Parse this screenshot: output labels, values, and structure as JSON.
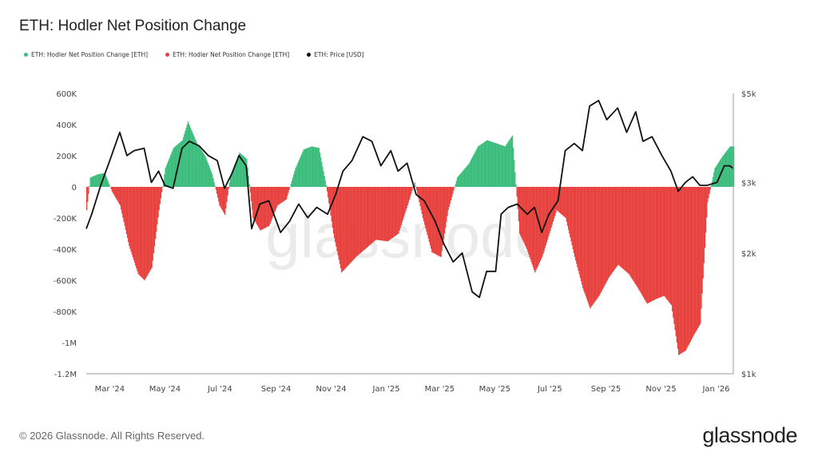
{
  "title": "ETH: Hodler Net Position Change",
  "legend": [
    {
      "label": "ETH: Hodler Net Position Change [ETH]",
      "color": "#3dbd7d"
    },
    {
      "label": "ETH: Hodler Net Position Change [ETH]",
      "color": "#e8423f"
    },
    {
      "label": "ETH: Price [USD]",
      "color": "#111111"
    }
  ],
  "watermark": "glassnode",
  "footer": {
    "copyright": "© 2026 Glassnode. All Rights Reserved.",
    "brand": "glassnode"
  },
  "chart_data": {
    "type": "bar",
    "title": "ETH: Hodler Net Position Change",
    "x_range": [
      "2024-02-04",
      "2026-01-20"
    ],
    "x_ticks": [
      "Mar '24",
      "May '24",
      "Jul '24",
      "Sep '24",
      "Nov '24",
      "Jan '25",
      "Mar '25",
      "May '25",
      "Jul '25",
      "Sep '25",
      "Nov '25",
      "Jan '26"
    ],
    "y_left": {
      "ticks": [
        600000,
        400000,
        200000,
        0,
        -200000,
        -400000,
        -600000,
        -800000,
        -1000000,
        -1200000
      ],
      "tick_labels": [
        "600K",
        "400K",
        "200K",
        "0",
        "-200K",
        "-400K",
        "-600K",
        "-800K",
        "-1M",
        "-1.2M"
      ],
      "range": [
        -1200000,
        600000
      ]
    },
    "y_right": {
      "scale": "log",
      "ticks": [
        5000,
        3000,
        2000,
        1000
      ],
      "tick_labels": [
        "$5k",
        "$3k",
        "$2k",
        "$1k"
      ],
      "range": [
        1000,
        5000
      ]
    },
    "position_color_positive": "#3dbd7d",
    "position_color_negative": "#e8423f",
    "price_color": "#111111",
    "series": [
      {
        "name": "ETH: Hodler Net Position Change [ETH]",
        "axis": "left",
        "points": [
          [
            "2024-02-04",
            -150000
          ],
          [
            "2024-02-08",
            60000
          ],
          [
            "2024-02-16",
            80000
          ],
          [
            "2024-02-24",
            90000
          ],
          [
            "2024-03-03",
            -30000
          ],
          [
            "2024-03-12",
            -120000
          ],
          [
            "2024-03-22",
            -380000
          ],
          [
            "2024-04-01",
            -560000
          ],
          [
            "2024-04-08",
            -600000
          ],
          [
            "2024-04-16",
            -520000
          ],
          [
            "2024-04-24",
            -150000
          ],
          [
            "2024-05-01",
            120000
          ],
          [
            "2024-05-10",
            250000
          ],
          [
            "2024-05-20",
            300000
          ],
          [
            "2024-05-26",
            420000
          ],
          [
            "2024-06-05",
            280000
          ],
          [
            "2024-06-14",
            200000
          ],
          [
            "2024-06-22",
            80000
          ],
          [
            "2024-06-30",
            -120000
          ],
          [
            "2024-07-06",
            -180000
          ],
          [
            "2024-07-12",
            70000
          ],
          [
            "2024-07-22",
            220000
          ],
          [
            "2024-07-30",
            180000
          ],
          [
            "2024-08-06",
            -200000
          ],
          [
            "2024-08-14",
            -280000
          ],
          [
            "2024-08-24",
            -250000
          ],
          [
            "2024-09-02",
            -120000
          ],
          [
            "2024-09-12",
            -80000
          ],
          [
            "2024-09-22",
            120000
          ],
          [
            "2024-10-01",
            240000
          ],
          [
            "2024-10-10",
            260000
          ],
          [
            "2024-10-18",
            250000
          ],
          [
            "2024-10-26",
            10000
          ],
          [
            "2024-11-03",
            -300000
          ],
          [
            "2024-11-12",
            -550000
          ],
          [
            "2024-11-20",
            -500000
          ],
          [
            "2024-11-28",
            -450000
          ],
          [
            "2024-12-08",
            -400000
          ],
          [
            "2024-12-20",
            -340000
          ],
          [
            "2025-01-02",
            -350000
          ],
          [
            "2025-01-14",
            -300000
          ],
          [
            "2025-01-24",
            -120000
          ],
          [
            "2025-02-01",
            30000
          ],
          [
            "2025-02-10",
            -200000
          ],
          [
            "2025-02-20",
            -420000
          ],
          [
            "2025-03-02",
            -450000
          ],
          [
            "2025-03-10",
            -150000
          ],
          [
            "2025-03-20",
            60000
          ],
          [
            "2025-04-02",
            150000
          ],
          [
            "2025-04-12",
            260000
          ],
          [
            "2025-04-22",
            300000
          ],
          [
            "2025-05-02",
            280000
          ],
          [
            "2025-05-12",
            260000
          ],
          [
            "2025-05-20",
            330000
          ],
          [
            "2025-05-28",
            -300000
          ],
          [
            "2025-06-05",
            -400000
          ],
          [
            "2025-06-14",
            -550000
          ],
          [
            "2025-06-22",
            -450000
          ],
          [
            "2025-06-30",
            -300000
          ],
          [
            "2025-07-08",
            -150000
          ],
          [
            "2025-07-18",
            -200000
          ],
          [
            "2025-07-28",
            -450000
          ],
          [
            "2025-08-06",
            -650000
          ],
          [
            "2025-08-14",
            -780000
          ],
          [
            "2025-08-24",
            -700000
          ],
          [
            "2025-09-04",
            -580000
          ],
          [
            "2025-09-14",
            -500000
          ],
          [
            "2025-09-26",
            -560000
          ],
          [
            "2025-10-06",
            -650000
          ],
          [
            "2025-10-16",
            -750000
          ],
          [
            "2025-10-26",
            -720000
          ],
          [
            "2025-11-04",
            -700000
          ],
          [
            "2025-11-12",
            -760000
          ],
          [
            "2025-11-20",
            -1080000
          ],
          [
            "2025-11-28",
            -1050000
          ],
          [
            "2025-12-06",
            -960000
          ],
          [
            "2025-12-14",
            -880000
          ],
          [
            "2025-12-22",
            -100000
          ],
          [
            "2025-12-30",
            120000
          ],
          [
            "2026-01-08",
            200000
          ],
          [
            "2026-01-16",
            260000
          ]
        ]
      },
      {
        "name": "ETH: Price [USD]",
        "axis": "right",
        "points": [
          [
            "2024-02-04",
            2300
          ],
          [
            "2024-02-10",
            2500
          ],
          [
            "2024-02-20",
            2950
          ],
          [
            "2024-03-01",
            3400
          ],
          [
            "2024-03-12",
            4000
          ],
          [
            "2024-03-20",
            3500
          ],
          [
            "2024-03-28",
            3600
          ],
          [
            "2024-04-08",
            3650
          ],
          [
            "2024-04-16",
            3000
          ],
          [
            "2024-04-24",
            3200
          ],
          [
            "2024-05-01",
            2950
          ],
          [
            "2024-05-10",
            2900
          ],
          [
            "2024-05-20",
            3650
          ],
          [
            "2024-05-28",
            3800
          ],
          [
            "2024-06-08",
            3700
          ],
          [
            "2024-06-18",
            3500
          ],
          [
            "2024-06-28",
            3400
          ],
          [
            "2024-07-06",
            2900
          ],
          [
            "2024-07-14",
            3150
          ],
          [
            "2024-07-22",
            3500
          ],
          [
            "2024-07-30",
            3300
          ],
          [
            "2024-08-05",
            2300
          ],
          [
            "2024-08-14",
            2650
          ],
          [
            "2024-08-24",
            2700
          ],
          [
            "2024-09-06",
            2250
          ],
          [
            "2024-09-16",
            2400
          ],
          [
            "2024-09-26",
            2650
          ],
          [
            "2024-10-06",
            2450
          ],
          [
            "2024-10-16",
            2600
          ],
          [
            "2024-10-28",
            2500
          ],
          [
            "2024-11-06",
            2800
          ],
          [
            "2024-11-14",
            3200
          ],
          [
            "2024-11-24",
            3400
          ],
          [
            "2024-12-06",
            3900
          ],
          [
            "2024-12-16",
            3800
          ],
          [
            "2024-12-26",
            3300
          ],
          [
            "2025-01-06",
            3600
          ],
          [
            "2025-01-14",
            3200
          ],
          [
            "2025-01-24",
            3350
          ],
          [
            "2025-02-03",
            2800
          ],
          [
            "2025-02-12",
            2700
          ],
          [
            "2025-02-24",
            2400
          ],
          [
            "2025-03-06",
            2100
          ],
          [
            "2025-03-16",
            1900
          ],
          [
            "2025-03-26",
            2000
          ],
          [
            "2025-04-06",
            1600
          ],
          [
            "2025-04-14",
            1550
          ],
          [
            "2025-04-22",
            1800
          ],
          [
            "2025-05-02",
            1800
          ],
          [
            "2025-05-08",
            2500
          ],
          [
            "2025-05-16",
            2600
          ],
          [
            "2025-05-26",
            2650
          ],
          [
            "2025-06-06",
            2500
          ],
          [
            "2025-06-14",
            2600
          ],
          [
            "2025-06-22",
            2250
          ],
          [
            "2025-06-30",
            2500
          ],
          [
            "2025-07-10",
            2700
          ],
          [
            "2025-07-18",
            3600
          ],
          [
            "2025-07-28",
            3750
          ],
          [
            "2025-08-06",
            3600
          ],
          [
            "2025-08-14",
            4650
          ],
          [
            "2025-08-24",
            4800
          ],
          [
            "2025-09-02",
            4300
          ],
          [
            "2025-09-14",
            4600
          ],
          [
            "2025-09-24",
            4000
          ],
          [
            "2025-10-04",
            4500
          ],
          [
            "2025-10-12",
            3800
          ],
          [
            "2025-10-22",
            3900
          ],
          [
            "2025-11-02",
            3500
          ],
          [
            "2025-11-12",
            3200
          ],
          [
            "2025-11-20",
            2850
          ],
          [
            "2025-11-28",
            3000
          ],
          [
            "2025-12-06",
            3100
          ],
          [
            "2025-12-14",
            2950
          ],
          [
            "2025-12-22",
            2950
          ],
          [
            "2026-01-02",
            3000
          ],
          [
            "2026-01-10",
            3300
          ],
          [
            "2026-01-16",
            3300
          ],
          [
            "2026-01-20",
            3250
          ]
        ]
      }
    ]
  }
}
